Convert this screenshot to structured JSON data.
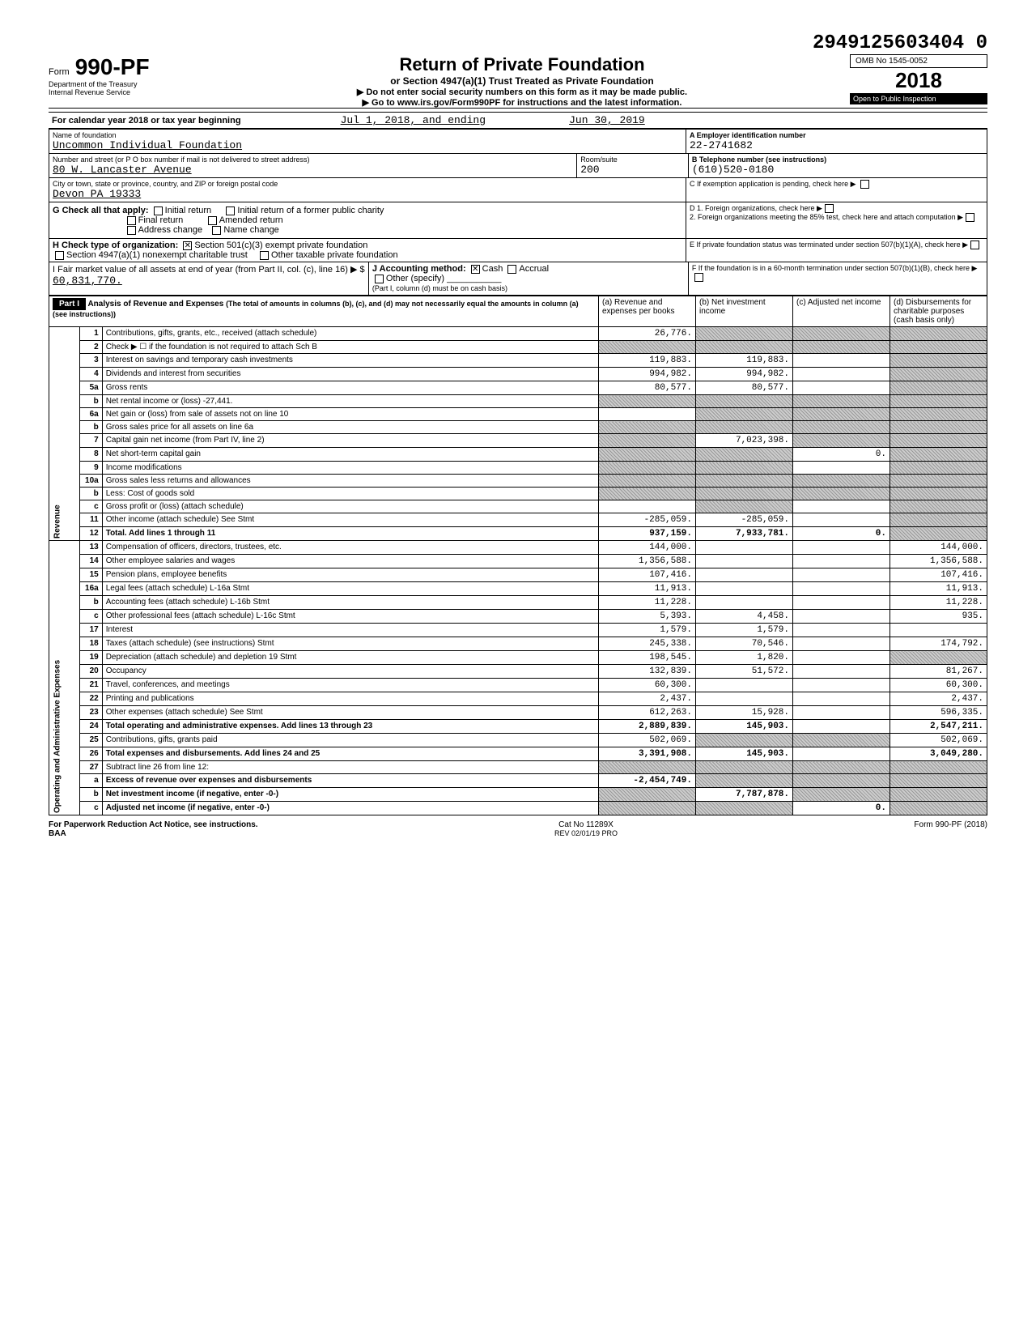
{
  "stamp_number": "2949125603404  0",
  "form": {
    "label": "Form",
    "number": "990-PF",
    "dept1": "Department of the Treasury",
    "dept2": "Internal Revenue Service",
    "title": "Return of Private Foundation",
    "subtitle": "or Section 4947(a)(1) Trust Treated as Private Foundation",
    "instr1": "▶ Do not enter social security numbers on this form as it may be made public.",
    "instr2": "▶ Go to www.irs.gov/Form990PF for instructions and the latest information.",
    "omb": "OMB No 1545-0052",
    "year": "2018",
    "inspection": "Open to Public Inspection"
  },
  "calendar": {
    "label": "For calendar year 2018 or tax year beginning",
    "begin": "Jul 1, 2018, and ending",
    "end": "Jun 30, 2019"
  },
  "foundation": {
    "name_label": "Name of foundation",
    "name": "Uncommon Individual Foundation",
    "addr_label": "Number and street (or P O box number if mail is not delivered to street address)",
    "addr": "80 W. Lancaster Avenue",
    "room_label": "Room/suite",
    "room": "200",
    "city_label": "City or town, state or province, country, and ZIP or foreign postal code",
    "city": "Devon PA 19333",
    "ein_label": "A  Employer identification number",
    "ein": "22-2741682",
    "phone_label": "B  Telephone number (see instructions)",
    "phone": "(610)520-0180",
    "c_label": "C  If exemption application is pending, check here ▶",
    "d1_label": "D  1. Foreign organizations, check here",
    "d2_label": "2. Foreign organizations meeting the 85% test, check here and attach computation",
    "e_label": "E  If private foundation status was terminated under section 507(b)(1)(A), check here",
    "f_label": "F  If the foundation is in a 60-month termination under section 507(b)(1)(B), check here"
  },
  "section_g": {
    "label": "G  Check all that apply:",
    "initial": "Initial return",
    "initial_former": "Initial return of a former public charity",
    "final": "Final return",
    "amended": "Amended return",
    "addr_change": "Address change",
    "name_change": "Name change"
  },
  "section_h": {
    "label": "H  Check type of organization:",
    "opt1": "Section 501(c)(3) exempt private foundation",
    "opt2": "Section 4947(a)(1) nonexempt charitable trust",
    "opt3": "Other taxable private foundation"
  },
  "section_i": {
    "label": "I  Fair market value of all assets at end of year (from Part II, col. (c), line 16) ▶ $",
    "value": "60,831,770."
  },
  "section_j": {
    "label": "J  Accounting method:",
    "cash": "Cash",
    "accrual": "Accrual",
    "other": "Other (specify)",
    "note": "(Part I, column (d) must be on cash basis)"
  },
  "part1": {
    "header": "Part I",
    "title": "Analysis of Revenue and Expenses",
    "note": "(The total of amounts in columns (b), (c), and (d) may not necessarily equal the amounts in column (a) (see instructions))",
    "col_a": "(a) Revenue and expenses per books",
    "col_b": "(b) Net investment income",
    "col_c": "(c) Adjusted net income",
    "col_d": "(d) Disbursements for charitable purposes (cash basis only)"
  },
  "revenue_label": "Revenue",
  "expenses_label": "Operating and Administrative Expenses",
  "lines": [
    {
      "n": "1",
      "desc": "Contributions, gifts, grants, etc., received (attach schedule)",
      "a": "26,776.",
      "b": "",
      "c": "",
      "d": "",
      "shade_b": true,
      "shade_c": true,
      "shade_d": true
    },
    {
      "n": "2",
      "desc": "Check ▶ ☐ if the foundation is not required to attach Sch B",
      "a": "",
      "b": "",
      "c": "",
      "d": "",
      "shade_a": true,
      "shade_b": true,
      "shade_c": true,
      "shade_d": true
    },
    {
      "n": "3",
      "desc": "Interest on savings and temporary cash investments",
      "a": "119,883.",
      "b": "119,883.",
      "c": "",
      "d": "",
      "shade_d": true
    },
    {
      "n": "4",
      "desc": "Dividends and interest from securities",
      "a": "994,982.",
      "b": "994,982.",
      "c": "",
      "d": "",
      "shade_d": true
    },
    {
      "n": "5a",
      "desc": "Gross rents",
      "a": "80,577.",
      "b": "80,577.",
      "c": "",
      "d": "",
      "shade_d": true
    },
    {
      "n": "b",
      "desc": "Net rental income or (loss)            -27,441.",
      "a": "",
      "b": "",
      "c": "",
      "d": "",
      "shade_a": true,
      "shade_b": true,
      "shade_c": true,
      "shade_d": true
    },
    {
      "n": "6a",
      "desc": "Net gain or (loss) from sale of assets not on line 10",
      "a": "",
      "b": "",
      "c": "",
      "d": "",
      "shade_b": true,
      "shade_c": true,
      "shade_d": true
    },
    {
      "n": "b",
      "desc": "Gross sales price for all assets on line 6a",
      "a": "",
      "b": "",
      "c": "",
      "d": "",
      "shade_a": true,
      "shade_b": true,
      "shade_c": true,
      "shade_d": true
    },
    {
      "n": "7",
      "desc": "Capital gain net income (from Part IV, line 2)",
      "a": "",
      "b": "7,023,398.",
      "c": "",
      "d": "",
      "shade_a": true,
      "shade_c": true,
      "shade_d": true
    },
    {
      "n": "8",
      "desc": "Net short-term capital gain",
      "a": "",
      "b": "",
      "c": "0.",
      "d": "",
      "shade_a": true,
      "shade_b": true,
      "shade_d": true
    },
    {
      "n": "9",
      "desc": "Income modifications",
      "a": "",
      "b": "",
      "c": "",
      "d": "",
      "shade_a": true,
      "shade_b": true,
      "shade_d": true
    },
    {
      "n": "10a",
      "desc": "Gross sales less returns and allowances",
      "a": "",
      "b": "",
      "c": "",
      "d": "",
      "shade_a": true,
      "shade_b": true,
      "shade_c": true,
      "shade_d": true
    },
    {
      "n": "b",
      "desc": "Less: Cost of goods sold",
      "a": "",
      "b": "",
      "c": "",
      "d": "",
      "shade_a": true,
      "shade_b": true,
      "shade_c": true,
      "shade_d": true
    },
    {
      "n": "c",
      "desc": "Gross profit or (loss) (attach schedule)",
      "a": "",
      "b": "",
      "c": "",
      "d": "",
      "shade_b": true,
      "shade_d": true
    },
    {
      "n": "11",
      "desc": "Other income (attach schedule)  See Stmt",
      "a": "-285,059.",
      "b": "-285,059.",
      "c": "",
      "d": "",
      "shade_d": true
    },
    {
      "n": "12",
      "desc": "Total. Add lines 1 through 11",
      "a": "937,159.",
      "b": "7,933,781.",
      "c": "0.",
      "d": "",
      "bold": true,
      "shade_d": true
    },
    {
      "n": "13",
      "desc": "Compensation of officers, directors, trustees, etc.",
      "a": "144,000.",
      "b": "",
      "c": "",
      "d": "144,000."
    },
    {
      "n": "14",
      "desc": "Other employee salaries and wages",
      "a": "1,356,588.",
      "b": "",
      "c": "",
      "d": "1,356,588."
    },
    {
      "n": "15",
      "desc": "Pension plans, employee benefits",
      "a": "107,416.",
      "b": "",
      "c": "",
      "d": "107,416."
    },
    {
      "n": "16a",
      "desc": "Legal fees (attach schedule)       L-16a Stmt",
      "a": "11,913.",
      "b": "",
      "c": "",
      "d": "11,913."
    },
    {
      "n": "b",
      "desc": "Accounting fees (attach schedule)  L-16b Stmt",
      "a": "11,228.",
      "b": "",
      "c": "",
      "d": "11,228."
    },
    {
      "n": "c",
      "desc": "Other professional fees (attach schedule) L-16c Stmt",
      "a": "5,393.",
      "b": "4,458.",
      "c": "",
      "d": "935."
    },
    {
      "n": "17",
      "desc": "Interest",
      "a": "1,579.",
      "b": "1,579.",
      "c": "",
      "d": ""
    },
    {
      "n": "18",
      "desc": "Taxes (attach schedule) (see instructions) Stmt",
      "a": "245,338.",
      "b": "70,546.",
      "c": "",
      "d": "174,792."
    },
    {
      "n": "19",
      "desc": "Depreciation (attach schedule) and depletion 19 Stmt",
      "a": "198,545.",
      "b": "1,820.",
      "c": "",
      "d": "",
      "shade_d": true
    },
    {
      "n": "20",
      "desc": "Occupancy",
      "a": "132,839.",
      "b": "51,572.",
      "c": "",
      "d": "81,267."
    },
    {
      "n": "21",
      "desc": "Travel, conferences, and meetings",
      "a": "60,300.",
      "b": "",
      "c": "",
      "d": "60,300."
    },
    {
      "n": "22",
      "desc": "Printing and publications",
      "a": "2,437.",
      "b": "",
      "c": "",
      "d": "2,437."
    },
    {
      "n": "23",
      "desc": "Other expenses (attach schedule) See Stmt",
      "a": "612,263.",
      "b": "15,928.",
      "c": "",
      "d": "596,335."
    },
    {
      "n": "24",
      "desc": "Total operating and administrative expenses. Add lines 13 through 23",
      "a": "2,889,839.",
      "b": "145,903.",
      "c": "",
      "d": "2,547,211.",
      "bold": true
    },
    {
      "n": "25",
      "desc": "Contributions, gifts, grants paid",
      "a": "502,069.",
      "b": "",
      "c": "",
      "d": "502,069.",
      "shade_b": true,
      "shade_c": true
    },
    {
      "n": "26",
      "desc": "Total expenses and disbursements. Add lines 24 and 25",
      "a": "3,391,908.",
      "b": "145,903.",
      "c": "",
      "d": "3,049,280.",
      "bold": true
    },
    {
      "n": "27",
      "desc": "Subtract line 26 from line 12:",
      "a": "",
      "b": "",
      "c": "",
      "d": "",
      "shade_a": true,
      "shade_b": true,
      "shade_c": true,
      "shade_d": true
    },
    {
      "n": "a",
      "desc": "Excess of revenue over expenses and disbursements",
      "a": "-2,454,749.",
      "b": "",
      "c": "",
      "d": "",
      "bold": true,
      "shade_b": true,
      "shade_c": true,
      "shade_d": true
    },
    {
      "n": "b",
      "desc": "Net investment income (if negative, enter -0-)",
      "a": "",
      "b": "7,787,878.",
      "c": "",
      "d": "",
      "bold": true,
      "shade_a": true,
      "shade_c": true,
      "shade_d": true
    },
    {
      "n": "c",
      "desc": "Adjusted net income (if negative, enter -0-)",
      "a": "",
      "b": "",
      "c": "0.",
      "d": "",
      "bold": true,
      "shade_a": true,
      "shade_b": true,
      "shade_d": true
    }
  ],
  "footer": {
    "left": "For Paperwork Reduction Act Notice, see instructions.",
    "baa": "BAA",
    "cat": "Cat No 11289X",
    "rev": "REV 02/01/19 PRO",
    "right": "Form 990-PF (2018)"
  }
}
